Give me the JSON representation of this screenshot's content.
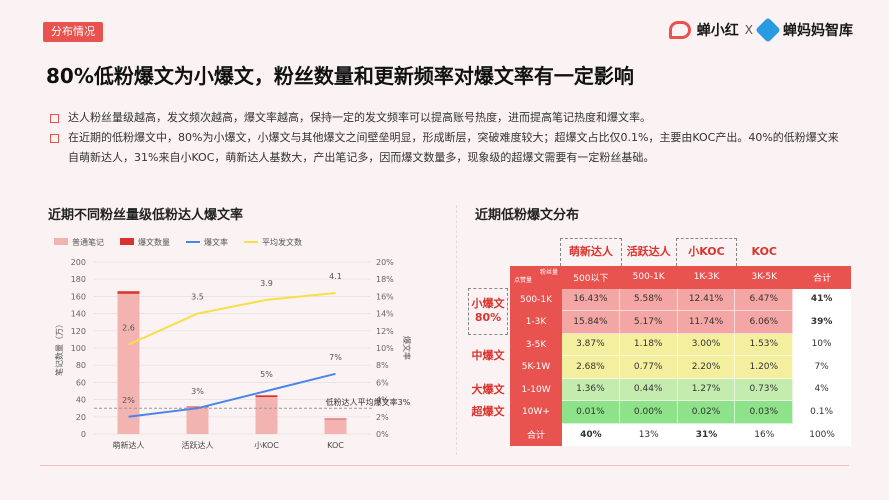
{
  "header": {
    "tag": "分布情况",
    "brand_left": "蝉小红",
    "brand_x": "X",
    "brand_right": "蝉妈妈智库"
  },
  "title": "80%低粉爆文为小爆文，粉丝数量和更新频率对爆文率有一定影响",
  "bullets": [
    "达人粉丝量级越高，发文频次越高，爆文率越高，保持一定的发文频率可以提高账号热度，进而提高笔记热度和爆文率。",
    "在近期的低粉爆文中，80%为小爆文，小爆文与其他爆文之间壁垒明显，形成断层，突破难度较大；超爆文占比仅0.1%，主要由KOC产出。40%的低粉爆文来自萌新达人，31%来自小KOC，萌新达人基数大，产出笔记多，因而爆文数量多，现象级的超爆文需要有一定粉丝基础。"
  ],
  "left_title": "近期不同粉丝量级低粉达人爆文率",
  "right_title": "近期低粉爆文分布",
  "chart_data": [
    {
      "type": "bar",
      "title": "近期不同粉丝量级低粉达人爆文率",
      "categories": [
        "萌新达人",
        "活跃达人",
        "小KOC",
        "KOC"
      ],
      "legend": [
        "普通笔记",
        "爆文数量",
        "爆文率",
        "平均发文数"
      ],
      "ylabel": "笔记数量（万）",
      "y2label": "爆文率",
      "ylim": [
        0,
        200
      ],
      "y2lim": [
        0,
        0.2
      ],
      "yticks": [
        0,
        20,
        40,
        60,
        80,
        100,
        120,
        140,
        160,
        180,
        200
      ],
      "y2ticks": [
        "0%",
        "2%",
        "4%",
        "6%",
        "8%",
        "10%",
        "12%",
        "14%",
        "16%",
        "18%",
        "20%"
      ],
      "series": [
        {
          "name": "普通笔记",
          "kind": "bar",
          "color": "#f3b3b1",
          "values": [
            163,
            31,
            43,
            17
          ]
        },
        {
          "name": "爆文数量",
          "kind": "bar",
          "color": "#d9332e",
          "values": [
            3,
            1,
            2,
            1
          ]
        },
        {
          "name": "爆文率",
          "kind": "line",
          "color": "#4a86e8",
          "values": [
            0.02,
            0.03,
            0.05,
            0.07
          ],
          "labels": [
            "2%",
            "3%",
            "5%",
            "7%"
          ]
        },
        {
          "name": "平均发文数",
          "kind": "line",
          "color": "#f5e04a",
          "values": [
            2.6,
            3.5,
            3.9,
            4.1
          ],
          "labels": [
            "2.6",
            "3.5",
            "3.9",
            "4.1"
          ],
          "axis_max": 5
        }
      ],
      "reference_line": {
        "value": 0.03,
        "label": "低粉达人平均爆文率3%"
      }
    },
    {
      "type": "table",
      "title": "近期低粉爆文分布",
      "corner_top": "粉丝量",
      "corner_bottom": "点赞量",
      "column_groups": [
        "萌新达人",
        "活跃达人",
        "小KOC",
        "KOC"
      ],
      "columns": [
        "500以下",
        "500-1K",
        "1K-3K",
        "3K-5K",
        "合计"
      ],
      "row_groups": [
        {
          "label": "小爆文 80%",
          "rows": [
            0,
            1
          ]
        },
        {
          "label": "中爆文",
          "rows": [
            2,
            3
          ]
        },
        {
          "label": "大爆文",
          "rows": [
            4
          ]
        },
        {
          "label": "超爆文",
          "rows": [
            5
          ]
        }
      ],
      "rows": [
        {
          "label": "500-1K",
          "values": [
            "16.43%",
            "5.58%",
            "12.41%",
            "6.47%",
            "41%"
          ],
          "bg": "#f4a6a4"
        },
        {
          "label": "1-3K",
          "values": [
            "15.84%",
            "5.17%",
            "11.74%",
            "6.06%",
            "39%"
          ],
          "bg": "#f4a6a4"
        },
        {
          "label": "3-5K",
          "values": [
            "3.87%",
            "1.18%",
            "3.00%",
            "1.53%",
            "10%"
          ],
          "bg": "#f3ef9e"
        },
        {
          "label": "5K-1W",
          "values": [
            "2.68%",
            "0.77%",
            "2.20%",
            "1.20%",
            "7%"
          ],
          "bg": "#f3ef9e"
        },
        {
          "label": "1-10W",
          "values": [
            "1.36%",
            "0.44%",
            "1.27%",
            "0.73%",
            "4%"
          ],
          "bg": "#c4ecae"
        },
        {
          "label": "10W+",
          "values": [
            "0.01%",
            "0.00%",
            "0.02%",
            "0.03%",
            "0.1%"
          ],
          "bg": "#8ee38a"
        }
      ],
      "totals": {
        "label": "合计",
        "values": [
          "40%",
          "13%",
          "31%",
          "16%",
          "100%"
        ]
      },
      "colors": {
        "header": "#e8524f",
        "accent": "#d9332e"
      }
    }
  ]
}
